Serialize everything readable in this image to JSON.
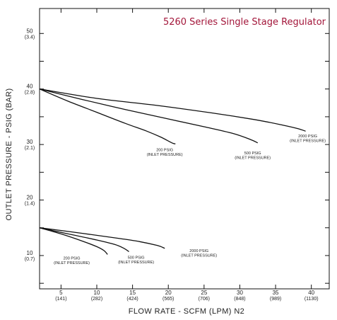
{
  "chart_data": {
    "type": "line",
    "title": "5260 Series Single Stage Regulator",
    "xlabel": "FLOW RATE - SCFM (LPM) N2",
    "ylabel": "OUTLET PRESSURE - PSIG (BAR)",
    "xlim": [
      2,
      42.5
    ],
    "ylim": [
      4,
      54.5
    ],
    "title_color": "#a3163a",
    "line_color": "#111111",
    "grid": false,
    "legend": "none",
    "x_ticks": [
      {
        "value": 5,
        "main": "5",
        "sub": "(141)"
      },
      {
        "value": 10,
        "main": "10",
        "sub": "(282)"
      },
      {
        "value": 15,
        "main": "15",
        "sub": "(424)"
      },
      {
        "value": 20,
        "main": "20",
        "sub": "(565)"
      },
      {
        "value": 25,
        "main": "25",
        "sub": "(706)"
      },
      {
        "value": 30,
        "main": "30",
        "sub": "(848)"
      },
      {
        "value": 35,
        "main": "35",
        "sub": "(989)"
      },
      {
        "value": 40,
        "main": "40",
        "sub": "(1130)"
      }
    ],
    "y_ticks": [
      {
        "value": 10,
        "main": "10",
        "sub": "(0.7)"
      },
      {
        "value": 20,
        "main": "20",
        "sub": "(1.4)"
      },
      {
        "value": 30,
        "main": "30",
        "sub": "(2.1)"
      },
      {
        "value": 40,
        "main": "40",
        "sub": "(2.8)"
      },
      {
        "value": 50,
        "main": "50",
        "sub": "(3.4)"
      }
    ],
    "y_minor_ticks": [
      5,
      15,
      25,
      35,
      45
    ],
    "series": [
      {
        "label_line1": "200 PSIG",
        "label_line2": "(INLET PRESSURE)",
        "label_at": [
          19.5,
          28.8
        ],
        "points": [
          [
            2,
            40
          ],
          [
            6,
            37.8
          ],
          [
            10,
            35.8
          ],
          [
            14,
            33.8
          ],
          [
            17,
            32.4
          ],
          [
            19,
            31.3
          ],
          [
            20.5,
            30.3
          ],
          [
            21,
            30.1
          ]
        ]
      },
      {
        "label_line1": "500 PSIG",
        "label_line2": "(INLET PRESSURE)",
        "label_at": [
          31.8,
          28.2
        ],
        "points": [
          [
            2,
            40
          ],
          [
            8,
            38.1
          ],
          [
            14,
            36.3
          ],
          [
            20,
            34.6
          ],
          [
            25,
            33.2
          ],
          [
            29,
            32
          ],
          [
            31.5,
            30.9
          ],
          [
            32.5,
            30.3
          ]
        ]
      },
      {
        "label_line1": "2000 PSIG",
        "label_line2": "(INLET PRESSURE)",
        "label_at": [
          39.5,
          31.3
        ],
        "points": [
          [
            2,
            40
          ],
          [
            10,
            38.3
          ],
          [
            18,
            37.1
          ],
          [
            26,
            35.7
          ],
          [
            32,
            34.5
          ],
          [
            36,
            33.5
          ],
          [
            38,
            32.9
          ],
          [
            39.2,
            32.4
          ]
        ]
      },
      {
        "label_line1": "200 PSIG",
        "label_line2": "(INLET PRESSURE)",
        "label_at": [
          6.5,
          9.3
        ],
        "points": [
          [
            2,
            15
          ],
          [
            5,
            13.9
          ],
          [
            8,
            12.6
          ],
          [
            10,
            11.6
          ],
          [
            11,
            10.9
          ],
          [
            11.5,
            10.2
          ]
        ]
      },
      {
        "label_line1": "500 PSIG",
        "label_line2": "(INLET PRESSURE)",
        "label_at": [
          15.5,
          9.4
        ],
        "points": [
          [
            2,
            15
          ],
          [
            6,
            13.9
          ],
          [
            10,
            12.8
          ],
          [
            12.5,
            12
          ],
          [
            13.8,
            11.3
          ],
          [
            14.5,
            10.7
          ]
        ]
      },
      {
        "label_line1": "2000 PSIG",
        "label_line2": "(INLET PRESSURE)",
        "label_at": [
          24.3,
          10.6
        ],
        "points": [
          [
            2,
            15
          ],
          [
            8,
            14
          ],
          [
            13,
            13.1
          ],
          [
            16,
            12.5
          ],
          [
            18.5,
            11.8
          ],
          [
            19.5,
            11.3
          ]
        ]
      }
    ]
  }
}
